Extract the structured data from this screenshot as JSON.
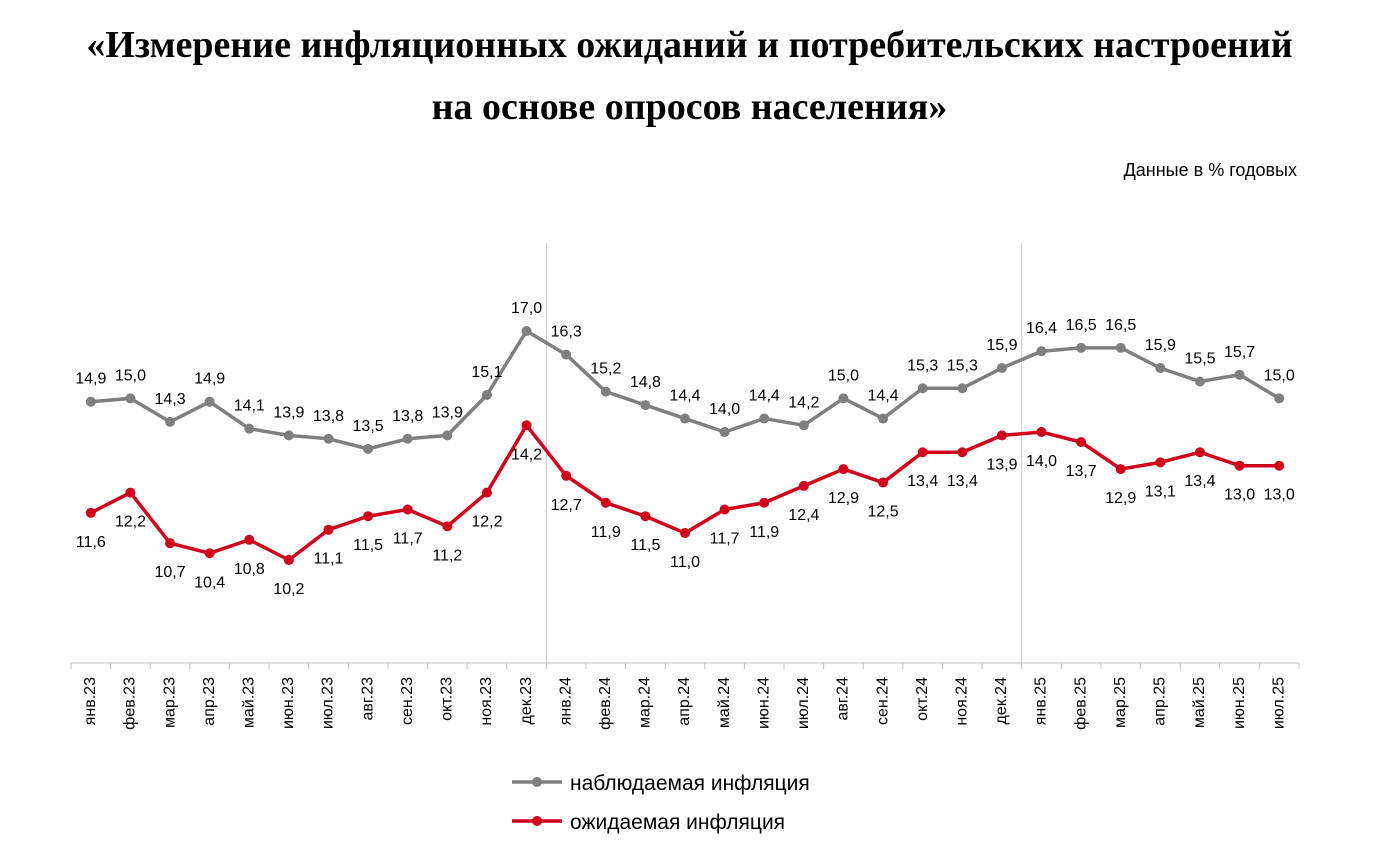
{
  "title_line1": "«Измерение инфляционных ожиданий и потребительских настроений",
  "title_line2": "на основе опросов населения»",
  "units_note": "Данные в % годовых",
  "chart_data": {
    "type": "line",
    "x": [
      "янв.23",
      "фев.23",
      "мар.23",
      "апр.23",
      "май.23",
      "июн.23",
      "июл.23",
      "авг.23",
      "сен.23",
      "окт.23",
      "ноя.23",
      "дек.23",
      "янв.24",
      "фев.24",
      "мар.24",
      "апр.24",
      "май.24",
      "июн.24",
      "июл.24",
      "авг.24",
      "сен.24",
      "окт.24",
      "ноя.24",
      "дек.24",
      "янв.25",
      "фев.25",
      "мар.25",
      "апр.25",
      "май.25",
      "июн.25",
      "июл.25"
    ],
    "series": [
      {
        "name": "наблюдаемая инфляция",
        "color": "#7f7f7f",
        "values": [
          14.9,
          15.0,
          14.3,
          14.9,
          14.1,
          13.9,
          13.8,
          13.5,
          13.8,
          13.9,
          15.1,
          17.0,
          16.3,
          15.2,
          14.8,
          14.4,
          14.0,
          14.4,
          14.2,
          15.0,
          14.4,
          15.3,
          15.3,
          15.9,
          16.4,
          16.5,
          16.5,
          15.9,
          15.5,
          15.7,
          15.0
        ],
        "labels": [
          "14,9",
          "15,0",
          "14,3",
          "14,9",
          "14,1",
          "13,9",
          "13,8",
          "13,5",
          "13,8",
          "13,9",
          "15,1",
          "17,0",
          "16,3",
          "15,2",
          "14,8",
          "14,4",
          "14,0",
          "14,4",
          "14,2",
          "15,0",
          "14,4",
          "15,3",
          "15,3",
          "15,9",
          "16,4",
          "16,5",
          "16,5",
          "15,9",
          "15,5",
          "15,7",
          "15,0"
        ]
      },
      {
        "name": "ожидаемая инфляция",
        "color": "#d0021b",
        "values": [
          11.6,
          12.2,
          10.7,
          10.4,
          10.8,
          10.2,
          11.1,
          11.5,
          11.7,
          11.2,
          12.2,
          14.2,
          12.7,
          11.9,
          11.5,
          11.0,
          11.7,
          11.9,
          12.4,
          12.9,
          12.5,
          13.4,
          13.4,
          13.9,
          14.0,
          13.7,
          12.9,
          13.1,
          13.4,
          13.0,
          13.0
        ],
        "labels": [
          "11,6",
          "12,2",
          "10,7",
          "10,4",
          "10,8",
          "10,2",
          "11,1",
          "11,5",
          "11,7",
          "11,2",
          "12,2",
          "14,2",
          "12,7",
          "11,9",
          "11,5",
          "11,0",
          "11,7",
          "11,9",
          "12,4",
          "12,9",
          "12,5",
          "13,4",
          "13,4",
          "13,9",
          "14,0",
          "13,7",
          "12,9",
          "13,1",
          "13,4",
          "13,0",
          "13,0"
        ]
      }
    ],
    "legend": "bottom",
    "grid": false,
    "year_separators_after": [
      "дек.23",
      "дек.24"
    ]
  }
}
